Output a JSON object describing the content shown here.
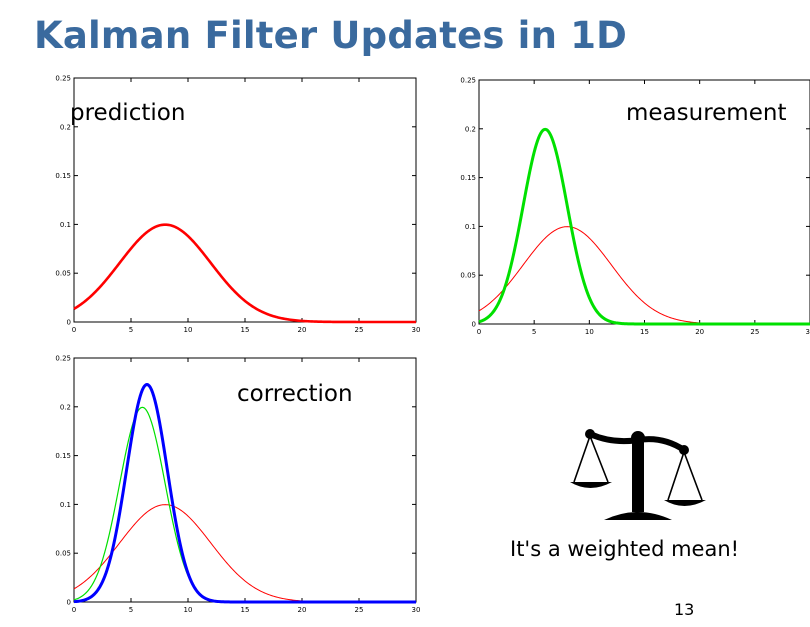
{
  "slide": {
    "title": "Kalman Filter Updates in 1D",
    "caption": "It's a weighted mean!",
    "page_number": "13",
    "icon": "balance-scale-icon"
  },
  "colors": {
    "title": "#3a6a9e",
    "prediction": "#ff0000",
    "measurement": "#00e000",
    "correction": "#0000ff"
  },
  "chart_data": [
    {
      "type": "line",
      "label": "prediction",
      "xlim": [
        0,
        30
      ],
      "ylim": [
        0,
        0.25
      ],
      "x_ticks": [
        "0",
        "5",
        "10",
        "15",
        "20",
        "25",
        "30"
      ],
      "y_ticks": [
        "0",
        "0.05",
        "0.1",
        "0.15",
        "0.2",
        "0.25"
      ],
      "series": [
        {
          "style": "prediction",
          "mean": 8,
          "sigma": 4,
          "width": 2.6
        }
      ]
    },
    {
      "type": "line",
      "label": "measurement",
      "xlim": [
        0,
        30
      ],
      "ylim": [
        0,
        0.25
      ],
      "x_ticks": [
        "0",
        "5",
        "10",
        "15",
        "20",
        "25",
        "30"
      ],
      "y_ticks": [
        "0",
        "0.05",
        "0.1",
        "0.15",
        "0.2",
        "0.25"
      ],
      "series": [
        {
          "style": "prediction",
          "mean": 8,
          "sigma": 4,
          "width": 1
        },
        {
          "style": "measurement",
          "mean": 6,
          "sigma": 2,
          "width": 3
        }
      ]
    },
    {
      "type": "line",
      "label": "correction",
      "xlim": [
        0,
        30
      ],
      "ylim": [
        0,
        0.25
      ],
      "x_ticks": [
        "0",
        "5",
        "10",
        "15",
        "20",
        "25",
        "30"
      ],
      "y_ticks": [
        "0",
        "0.05",
        "0.1",
        "0.15",
        "0.2",
        "0.25"
      ],
      "series": [
        {
          "style": "prediction",
          "mean": 8,
          "sigma": 4,
          "width": 1
        },
        {
          "style": "measurement",
          "mean": 6,
          "sigma": 2,
          "width": 1.2
        },
        {
          "style": "correction",
          "mean": 6.4,
          "sigma": 1.79,
          "width": 3
        }
      ]
    }
  ]
}
